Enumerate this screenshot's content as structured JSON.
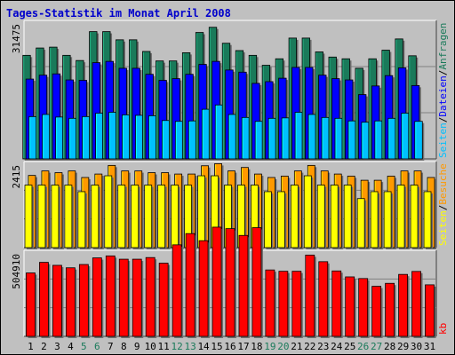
{
  "title": "Tages-Statistik im Monat April 2008",
  "chart_data": [
    {
      "type": "bar",
      "categories": [
        "1",
        "2",
        "3",
        "4",
        "5",
        "6",
        "7",
        "8",
        "9",
        "10",
        "11",
        "12",
        "13",
        "14",
        "15",
        "16",
        "17",
        "18",
        "19",
        "20",
        "21",
        "22",
        "23",
        "24",
        "25",
        "26",
        "27",
        "28",
        "29",
        "30",
        "31"
      ],
      "weekend_days": [
        "5",
        "6",
        "12",
        "13",
        "19",
        "20",
        "26",
        "27"
      ],
      "axis_max_label": "31475",
      "ymax": 31475,
      "series": [
        {
          "name": "Anfragen",
          "color": "#1a7a5a",
          "values": [
            24000,
            25700,
            25900,
            24000,
            22800,
            29500,
            29500,
            27600,
            27600,
            24900,
            22700,
            22700,
            24600,
            29300,
            30500,
            26800,
            25100,
            24000,
            21700,
            23200,
            28000,
            28000,
            24800,
            23600,
            23200,
            21000,
            23200,
            25200,
            27800,
            23900,
            0
          ]
        },
        {
          "name": "Dateien",
          "color": "#0000ff",
          "values": [
            18500,
            19400,
            19700,
            18300,
            18200,
            22300,
            22600,
            21000,
            21000,
            19600,
            18200,
            18600,
            19600,
            21900,
            22600,
            20600,
            20100,
            17500,
            17900,
            18700,
            21200,
            21200,
            19400,
            18600,
            18300,
            14900,
            16900,
            19300,
            21100,
            17000,
            0
          ]
        },
        {
          "name": "Seiten",
          "color": "#00c0ff",
          "values": [
            9800,
            10300,
            9700,
            9400,
            9800,
            10600,
            10800,
            10200,
            10100,
            10000,
            8900,
            8700,
            8800,
            11500,
            12500,
            10300,
            9600,
            8700,
            9400,
            9500,
            10800,
            10300,
            9600,
            9400,
            8800,
            8500,
            8800,
            9400,
            10600,
            8700,
            0
          ]
        }
      ]
    },
    {
      "type": "bar",
      "categories": [
        "1",
        "2",
        "3",
        "4",
        "5",
        "6",
        "7",
        "8",
        "9",
        "10",
        "11",
        "12",
        "13",
        "14",
        "15",
        "16",
        "17",
        "18",
        "19",
        "20",
        "21",
        "22",
        "23",
        "24",
        "25",
        "26",
        "27",
        "28",
        "29",
        "30",
        "31"
      ],
      "axis_max_label": "2415",
      "ymax": 2415,
      "series": [
        {
          "name": "Besuche",
          "color": "#ff9900",
          "values": [
            2090,
            2220,
            2170,
            2220,
            2030,
            2130,
            2380,
            2220,
            2220,
            2170,
            2170,
            2130,
            2130,
            2370,
            2430,
            2220,
            2320,
            2130,
            2030,
            2070,
            2220,
            2380,
            2220,
            2130,
            2070,
            1950,
            1950,
            2070,
            2220,
            2220,
            2030
          ]
        },
        {
          "name": "Seiten",
          "color": "#ffff00",
          "values": [
            1810,
            1810,
            1810,
            1810,
            1620,
            1810,
            2080,
            1810,
            1810,
            1810,
            1810,
            1810,
            1810,
            2080,
            2080,
            1810,
            1810,
            1810,
            1620,
            1620,
            1810,
            2080,
            1810,
            1810,
            1810,
            1420,
            1620,
            1620,
            1810,
            1810,
            1620
          ]
        }
      ]
    },
    {
      "type": "bar",
      "categories": [
        "1",
        "2",
        "3",
        "4",
        "5",
        "6",
        "7",
        "8",
        "9",
        "10",
        "11",
        "12",
        "13",
        "14",
        "15",
        "16",
        "17",
        "18",
        "19",
        "20",
        "21",
        "22",
        "23",
        "24",
        "25",
        "26",
        "27",
        "28",
        "29",
        "30",
        "31"
      ],
      "axis_max_label": "504910",
      "ymax": 504910,
      "series": [
        {
          "name": "kb",
          "color": "#ff0000",
          "values": [
            384000,
            448000,
            430000,
            415000,
            435000,
            475000,
            487000,
            467000,
            467000,
            477000,
            443000,
            554000,
            622000,
            579000,
            661000,
            652000,
            611000,
            658000,
            402000,
            394000,
            394000,
            492000,
            452000,
            396000,
            360000,
            350000,
            303000,
            321000,
            375000,
            393000,
            312000
          ]
        }
      ]
    }
  ]
}
